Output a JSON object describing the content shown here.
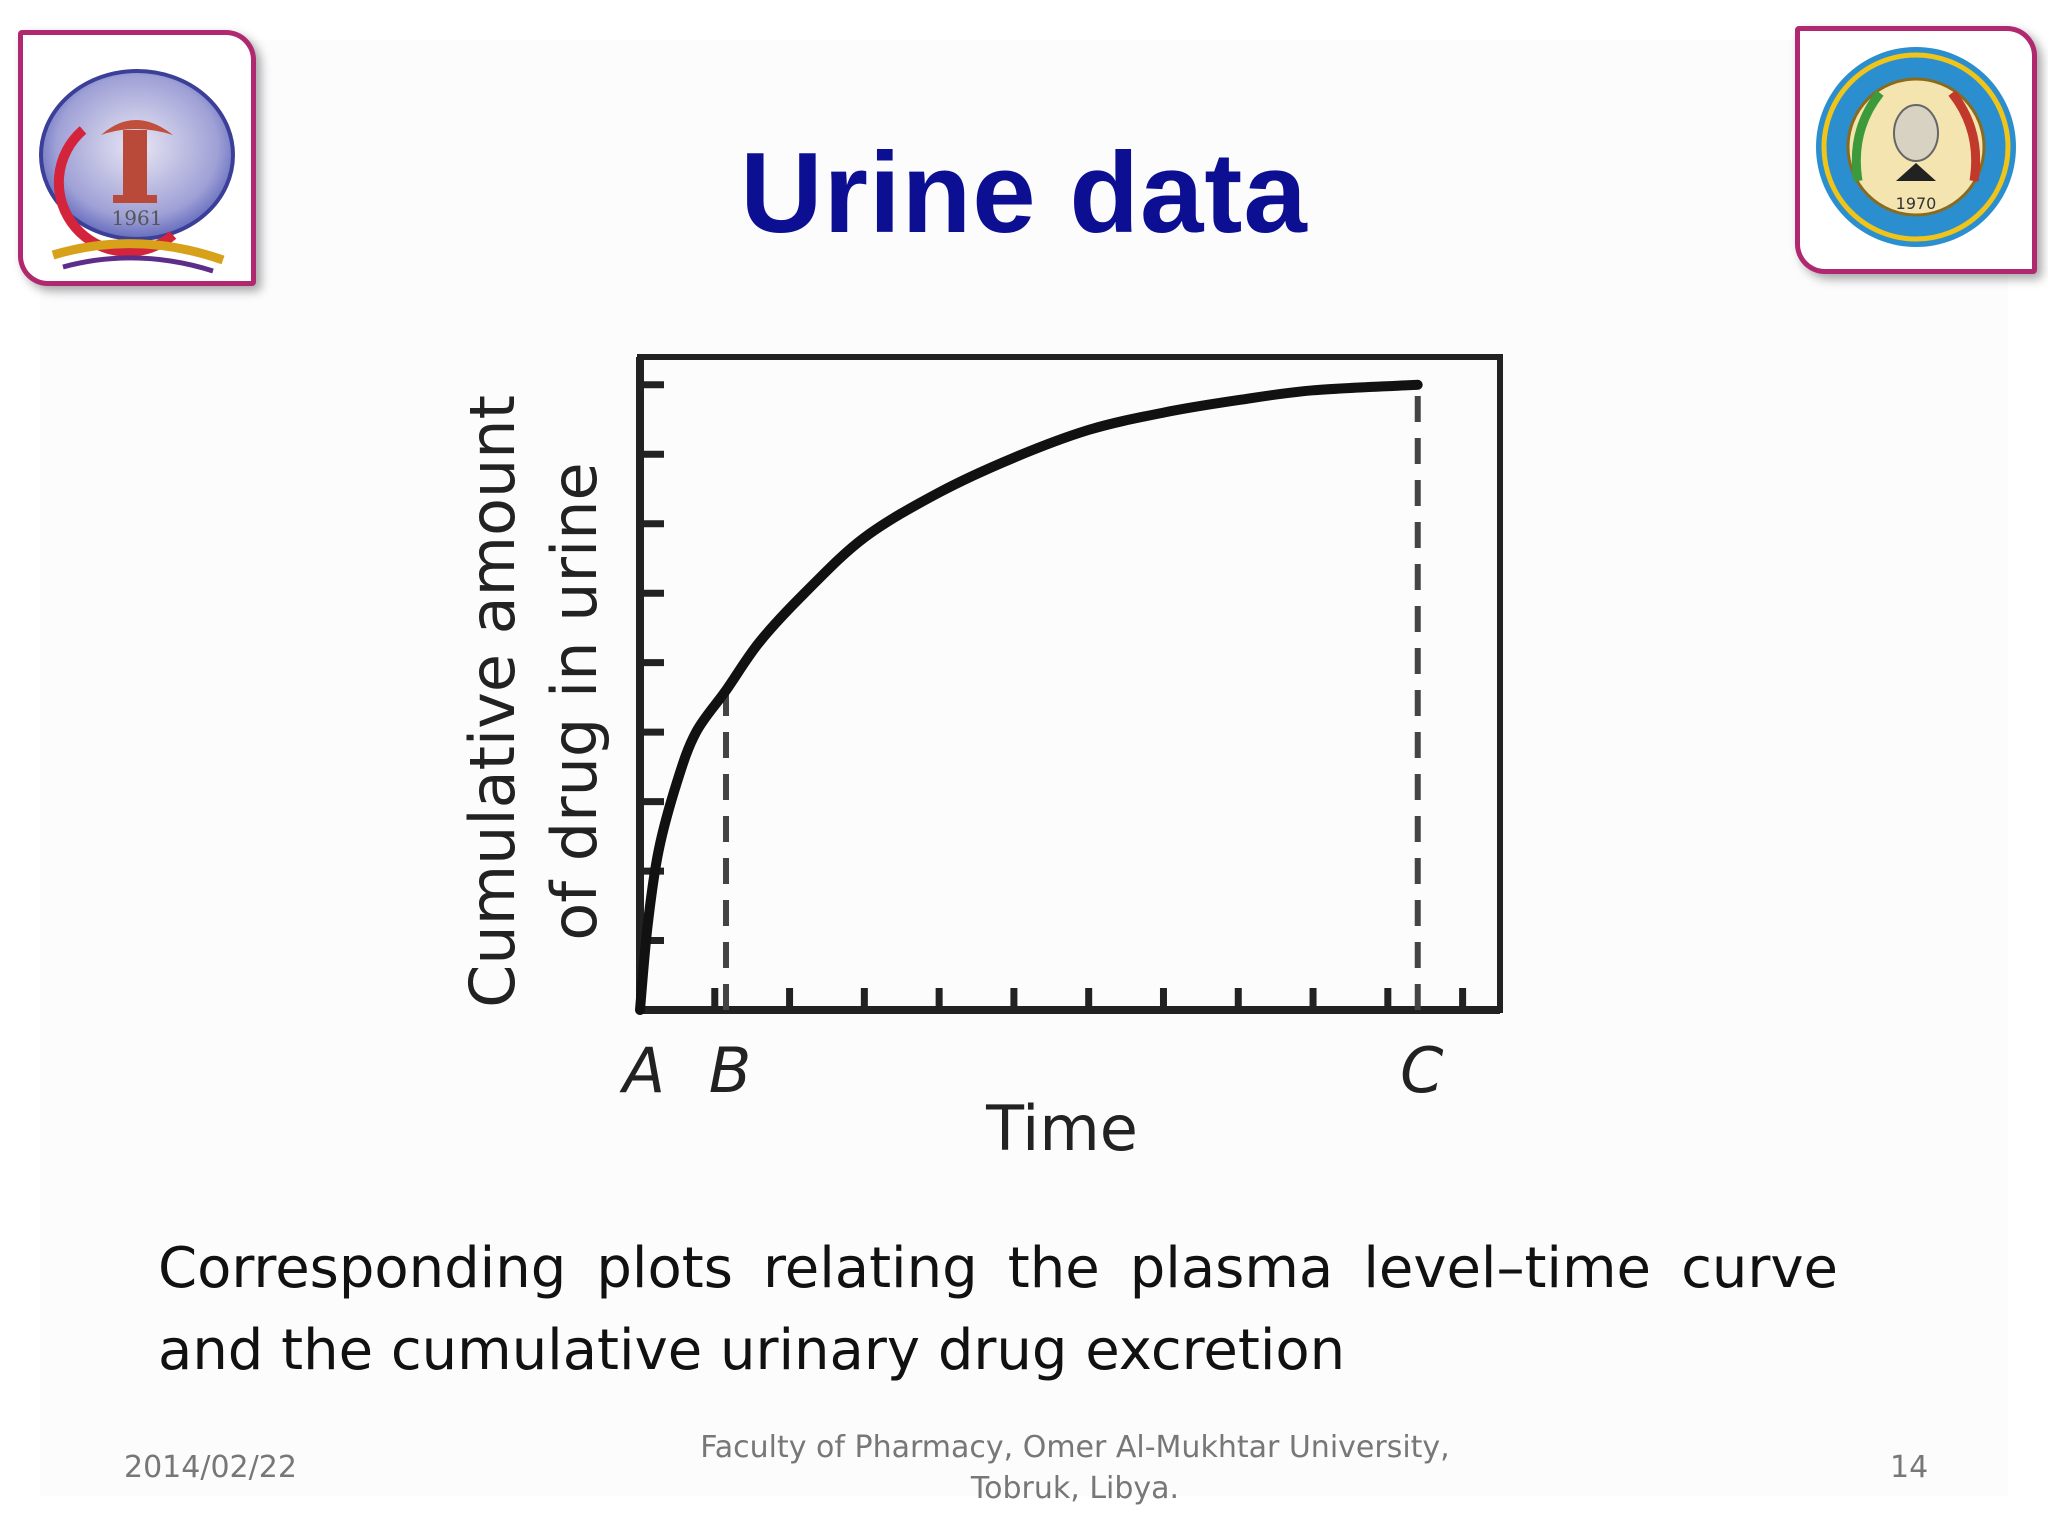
{
  "title": "Urine data",
  "logos": {
    "left": {
      "icon": "faculty-of-pharmacy-logo",
      "year": "1961"
    },
    "right": {
      "icon": "omer-al-mukhtar-university-seal",
      "year": "1970"
    }
  },
  "chart_data": {
    "type": "line",
    "title": "",
    "xlabel": "Time",
    "ylabel_lines": [
      "Cumulative amount",
      "of drug in urine"
    ],
    "xlim": [
      0,
      11.5
    ],
    "ylim": [
      0,
      9.4
    ],
    "x_marker_labels": [
      {
        "label": "A",
        "x": 0
      },
      {
        "label": "B",
        "x": 1.15
      },
      {
        "label": "C",
        "x": 10.4
      }
    ],
    "x_ticks": [
      1,
      2,
      3,
      4,
      5,
      6,
      7,
      8,
      9,
      10,
      11
    ],
    "y_ticks": [
      1,
      2,
      3,
      4,
      5,
      6,
      7,
      8,
      9
    ],
    "series": [
      {
        "values": [
          [
            0,
            0
          ],
          [
            0.1,
            1.2
          ],
          [
            0.25,
            2.3
          ],
          [
            0.5,
            3.3
          ],
          [
            0.75,
            4.0
          ],
          [
            1.15,
            4.6
          ],
          [
            1.6,
            5.3
          ],
          [
            2.2,
            6.0
          ],
          [
            3.0,
            6.8
          ],
          [
            4.0,
            7.45
          ],
          [
            5.0,
            7.95
          ],
          [
            6.0,
            8.35
          ],
          [
            7.0,
            8.6
          ],
          [
            8.0,
            8.78
          ],
          [
            9.0,
            8.92
          ],
          [
            10.4,
            9.0
          ]
        ]
      }
    ],
    "vertical_markers": [
      {
        "x": 1.15,
        "y": 4.6,
        "style": "dashed"
      },
      {
        "x": 10.4,
        "y": 9.0,
        "style": "dashed"
      }
    ],
    "grid": false,
    "colors": {
      "line": "#111111",
      "axes": "#222222",
      "dash": "#444444"
    }
  },
  "caption": "Corresponding plots relating the plasma level–time curve and the cumulative urinary drug excretion",
  "footer": {
    "date": "2014/02/22",
    "institution_line1": "Faculty of Pharmacy, Omer Al-Mukhtar University,",
    "institution_line2": "Tobruk, Libya.",
    "page": "14"
  },
  "colors": {
    "title": "#0d0f93",
    "logo_frame": "#b0286f",
    "footer_text": "#777777"
  }
}
